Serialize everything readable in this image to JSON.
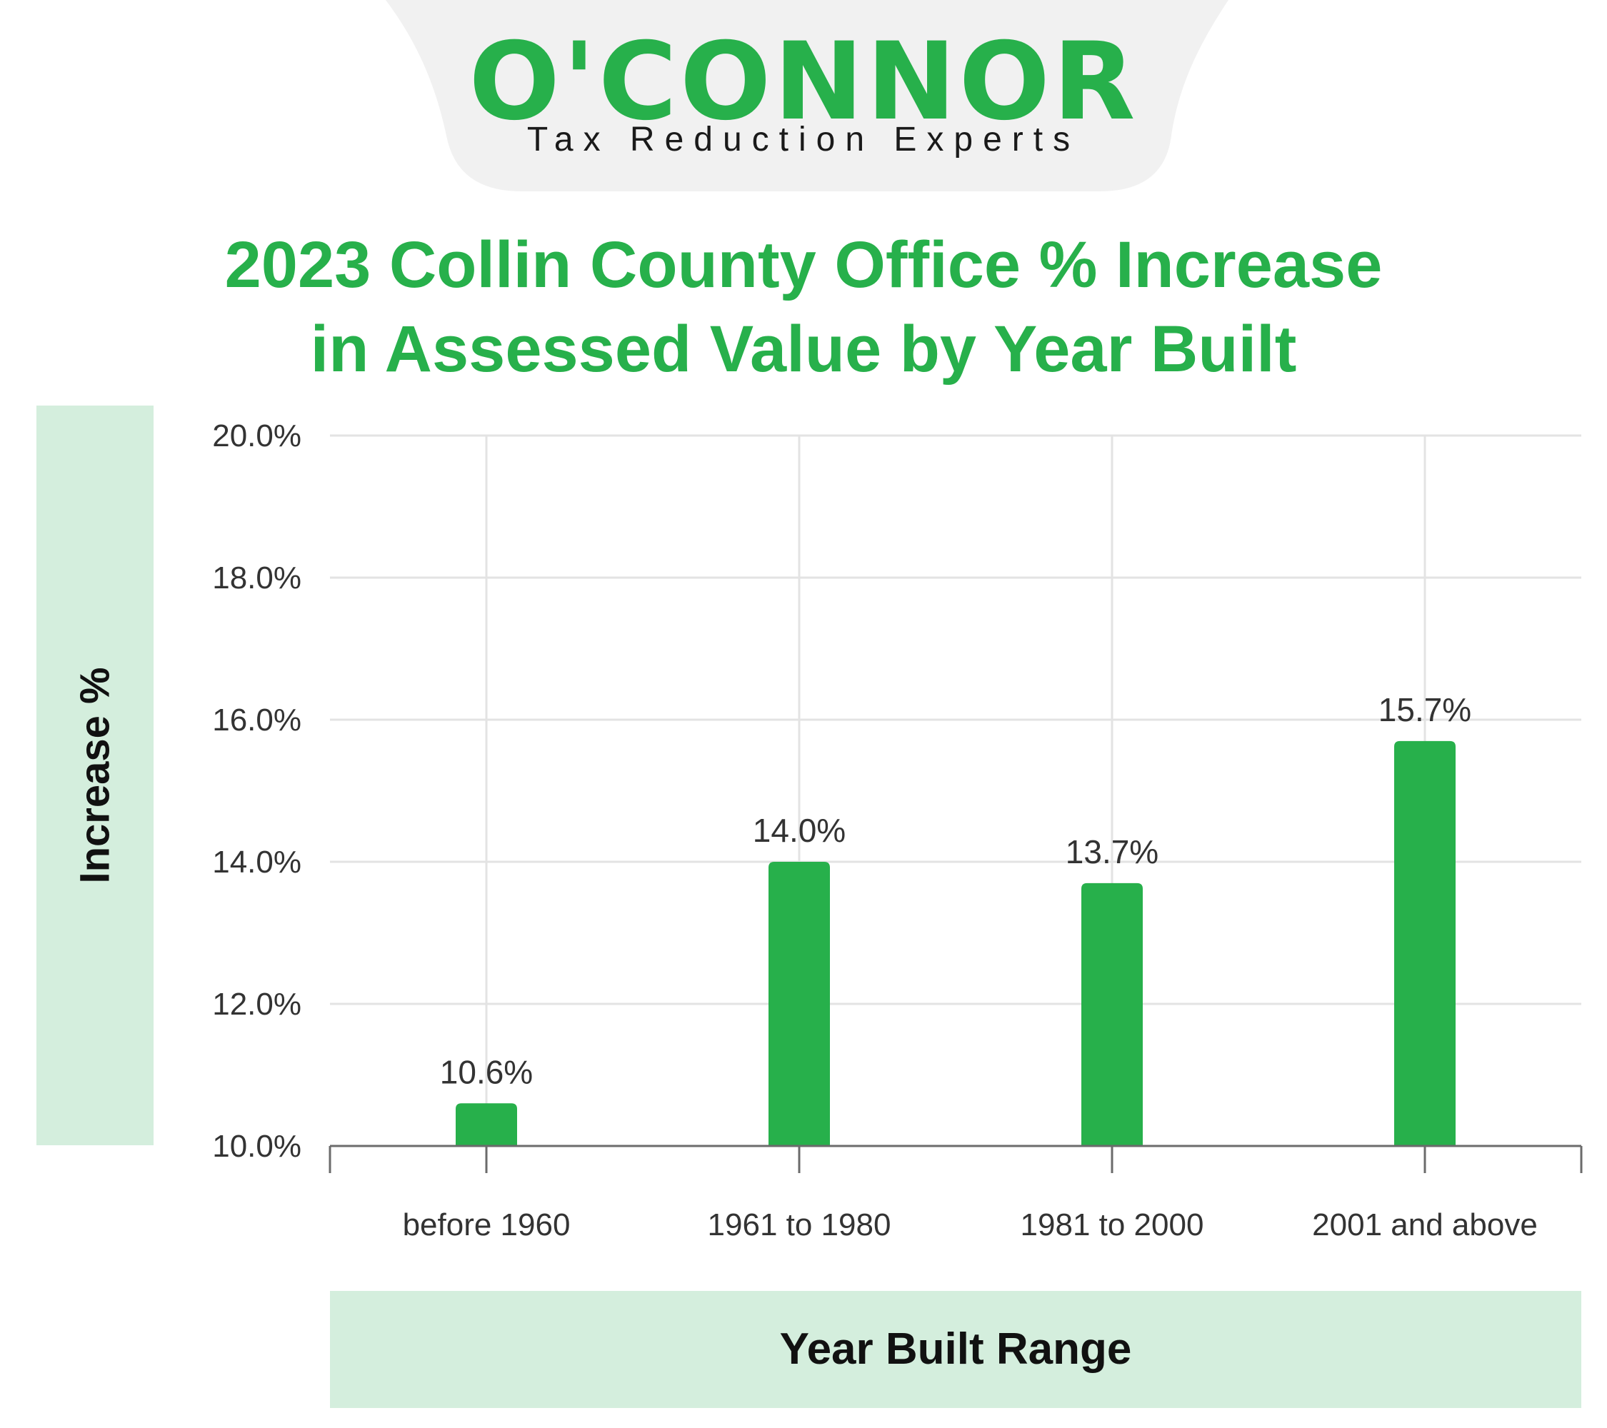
{
  "brand": {
    "name": "O'CONNOR",
    "tagline": "Tax Reduction Experts"
  },
  "colors": {
    "brand_green": "#27b04b",
    "label_band": "#d4eedd",
    "tab_gray": "#f1f1f1",
    "grid": "#e3e3e3",
    "axis": "#6b6b6b"
  },
  "chart_data": {
    "type": "bar",
    "title": "2023 Collin County Office % Increase in Assessed Value by Year Built",
    "title_lines": [
      "2023 Collin County Office % Increase",
      "in Assessed Value by Year Built"
    ],
    "xlabel": "Year Built Range",
    "ylabel": "Increase %",
    "categories": [
      "before 1960",
      "1961 to 1980",
      "1981 to 2000",
      "2001 and above"
    ],
    "values": [
      10.6,
      14.0,
      13.7,
      15.7
    ],
    "value_labels": [
      "10.6%",
      "14.0%",
      "13.7%",
      "15.7%"
    ],
    "ylim": [
      10,
      20
    ],
    "yticks": [
      10,
      12,
      14,
      16,
      18,
      20
    ],
    "ytick_labels": [
      "10.0%",
      "12.0%",
      "14.0%",
      "16.0%",
      "18.0%",
      "20.0%"
    ],
    "grid": true,
    "legend": "none"
  }
}
